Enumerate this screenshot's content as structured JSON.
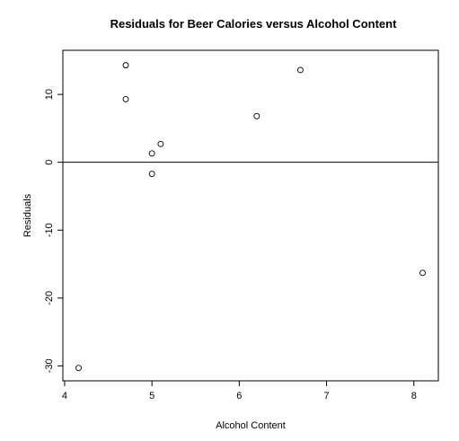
{
  "chart_data": {
    "type": "scatter",
    "title": "Residuals for Beer Calories versus Alcohol Content",
    "xlabel": "Alcohol Content",
    "ylabel": "Residuals",
    "xlim": [
      3.98,
      8.28
    ],
    "ylim": [
      -32.2,
      16.5
    ],
    "xticks": [
      "4",
      "5",
      "6",
      "7",
      "8"
    ],
    "yticks": [
      "-30",
      "-20",
      "-10",
      "0",
      "10"
    ],
    "ytick_values": [
      -30,
      -20,
      -10,
      0,
      10
    ],
    "xtick_values": [
      4,
      5,
      6,
      7,
      8
    ],
    "reference_line_y": 0,
    "grid": false,
    "legend": "none",
    "points": [
      {
        "x": 4.16,
        "y": -30.3
      },
      {
        "x": 4.7,
        "y": 14.3
      },
      {
        "x": 4.7,
        "y": 9.3
      },
      {
        "x": 5.0,
        "y": 1.3
      },
      {
        "x": 5.0,
        "y": -1.7
      },
      {
        "x": 5.1,
        "y": 2.7
      },
      {
        "x": 6.2,
        "y": 6.8
      },
      {
        "x": 6.7,
        "y": 13.6
      },
      {
        "x": 8.1,
        "y": -16.3
      }
    ]
  }
}
